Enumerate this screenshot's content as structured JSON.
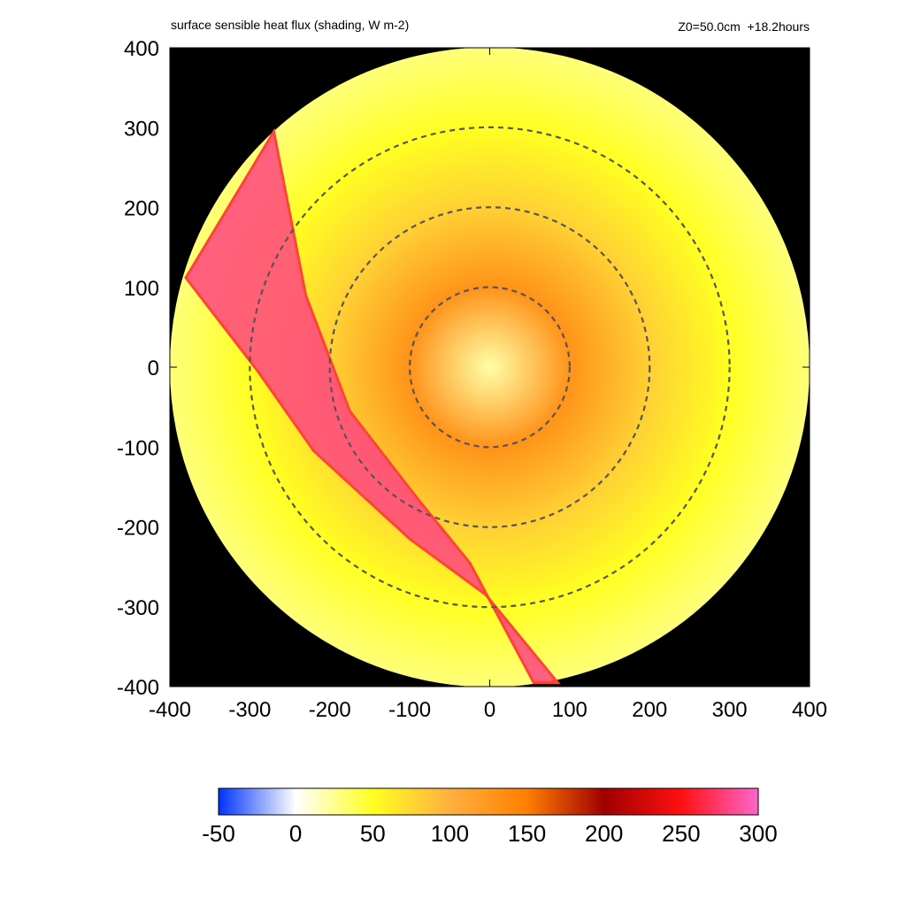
{
  "chart_data": {
    "type": "heatmap",
    "title": "surface sensible heat flux (shading, W m-2)",
    "info": "Z0=50.0cm  +18.2hours",
    "xlim": [
      -400,
      400
    ],
    "ylim": [
      -400,
      400
    ],
    "x_ticks": [
      "-400",
      "-300",
      "-200",
      "-100",
      "0",
      "100",
      "200",
      "300",
      "400"
    ],
    "y_ticks": [
      "400",
      "300",
      "200",
      "100",
      "0",
      "-100",
      "-200",
      "-300",
      "-400"
    ],
    "x_tick_values": [
      -400,
      -300,
      -200,
      -100,
      0,
      100,
      200,
      300,
      400
    ],
    "y_tick_values": [
      400,
      300,
      200,
      100,
      0,
      -100,
      -200,
      -300,
      -400
    ],
    "domain_radius": 400,
    "dashed_circle_radii": [
      100,
      200,
      300
    ],
    "land_strip": {
      "polygon": [
        [
          -270,
          295
        ],
        [
          -380,
          112
        ],
        [
          -290,
          -5
        ],
        [
          -220,
          -105
        ],
        [
          -100,
          -215
        ],
        [
          -5,
          -285
        ],
        [
          85,
          -395
        ],
        [
          55,
          -395
        ],
        [
          -25,
          -245
        ],
        [
          -90,
          -165
        ],
        [
          -175,
          -55
        ],
        [
          -230,
          90
        ]
      ],
      "values_description": "mixed high values up to 300"
    },
    "field_samples": [
      {
        "r": 0,
        "value": 20
      },
      {
        "r": 100,
        "value": 130
      },
      {
        "r": 200,
        "value": 80
      },
      {
        "r": 300,
        "value": 50
      },
      {
        "r": 400,
        "value": 30
      }
    ],
    "colorbar": {
      "min": -50,
      "max": 300,
      "ticks": [
        "-50",
        "0",
        "50",
        "100",
        "150",
        "200",
        "250",
        "300"
      ],
      "tick_values": [
        -50,
        0,
        50,
        100,
        150,
        200,
        250,
        300
      ],
      "stops": [
        {
          "value": -50,
          "color": "#0033ff"
        },
        {
          "value": 0,
          "color": "#ffffff"
        },
        {
          "value": 50,
          "color": "#ffff22"
        },
        {
          "value": 100,
          "color": "#ffb040"
        },
        {
          "value": 150,
          "color": "#ff7f00"
        },
        {
          "value": 200,
          "color": "#a00000"
        },
        {
          "value": 250,
          "color": "#ff1010"
        },
        {
          "value": 300,
          "color": "#ff66cc"
        }
      ]
    },
    "background_color": "#000000",
    "dashed_circle_color": "#555555",
    "land_edge_color": "#ff4433"
  }
}
